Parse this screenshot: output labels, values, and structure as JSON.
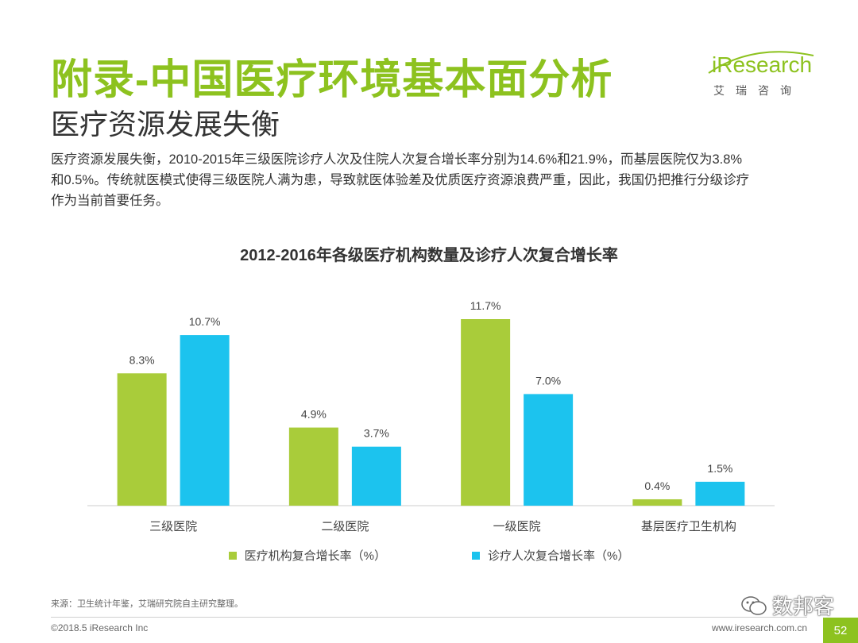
{
  "header": {
    "title": "附录-中国医疗环境基本面分析",
    "subtitle": "医疗资源发展失衡"
  },
  "logo": {
    "brand": "iResearch",
    "chinese": "艾瑞咨询"
  },
  "description": {
    "line1": "医疗资源发展失衡，2010-2015年三级医院诊疗人次及住院人次复合增长率分别为14.6%和21.9%，而基层医院仅为3.8%",
    "line2": "和0.5%。传统就医模式使得三级医院人满为患，导致就医体验差及优质医疗资源浪费严重，因此，我国仍把推行分级诊疗",
    "line3": "作为当前首要任务。"
  },
  "chart_data": {
    "type": "bar",
    "title": "2012-2016年各级医疗机构数量及诊疗人次复合增长率",
    "categories": [
      "三级医院",
      "二级医院",
      "一级医院",
      "基层医疗卫生机构"
    ],
    "series": [
      {
        "name": "医疗机构复合增长率（%）",
        "color": "#a9cc3a",
        "values": [
          8.3,
          4.9,
          11.7,
          0.4
        ],
        "labels": [
          "8.3%",
          "4.9%",
          "11.7%",
          "0.4%"
        ]
      },
      {
        "name": "诊疗人次复合增长率（%）",
        "color": "#1cc3ee",
        "values": [
          10.7,
          3.7,
          7.0,
          1.5
        ],
        "labels": [
          "10.7%",
          "3.7%",
          "7.0%",
          "1.5%"
        ]
      }
    ],
    "ylim": [
      0,
      11.7
    ],
    "grid": false,
    "legend_position": "bottom"
  },
  "footer": {
    "source": "来源：卫生统计年鉴，艾瑞研究院自主研究整理。",
    "copyright": "©2018.5 iResearch Inc",
    "website": "www.iresearch.com.cn",
    "page_number": "52",
    "watermark": "数邦客"
  },
  "colors": {
    "accent": "#8dc21f",
    "bar_green": "#a9cc3a",
    "bar_blue": "#1cc3ee"
  }
}
